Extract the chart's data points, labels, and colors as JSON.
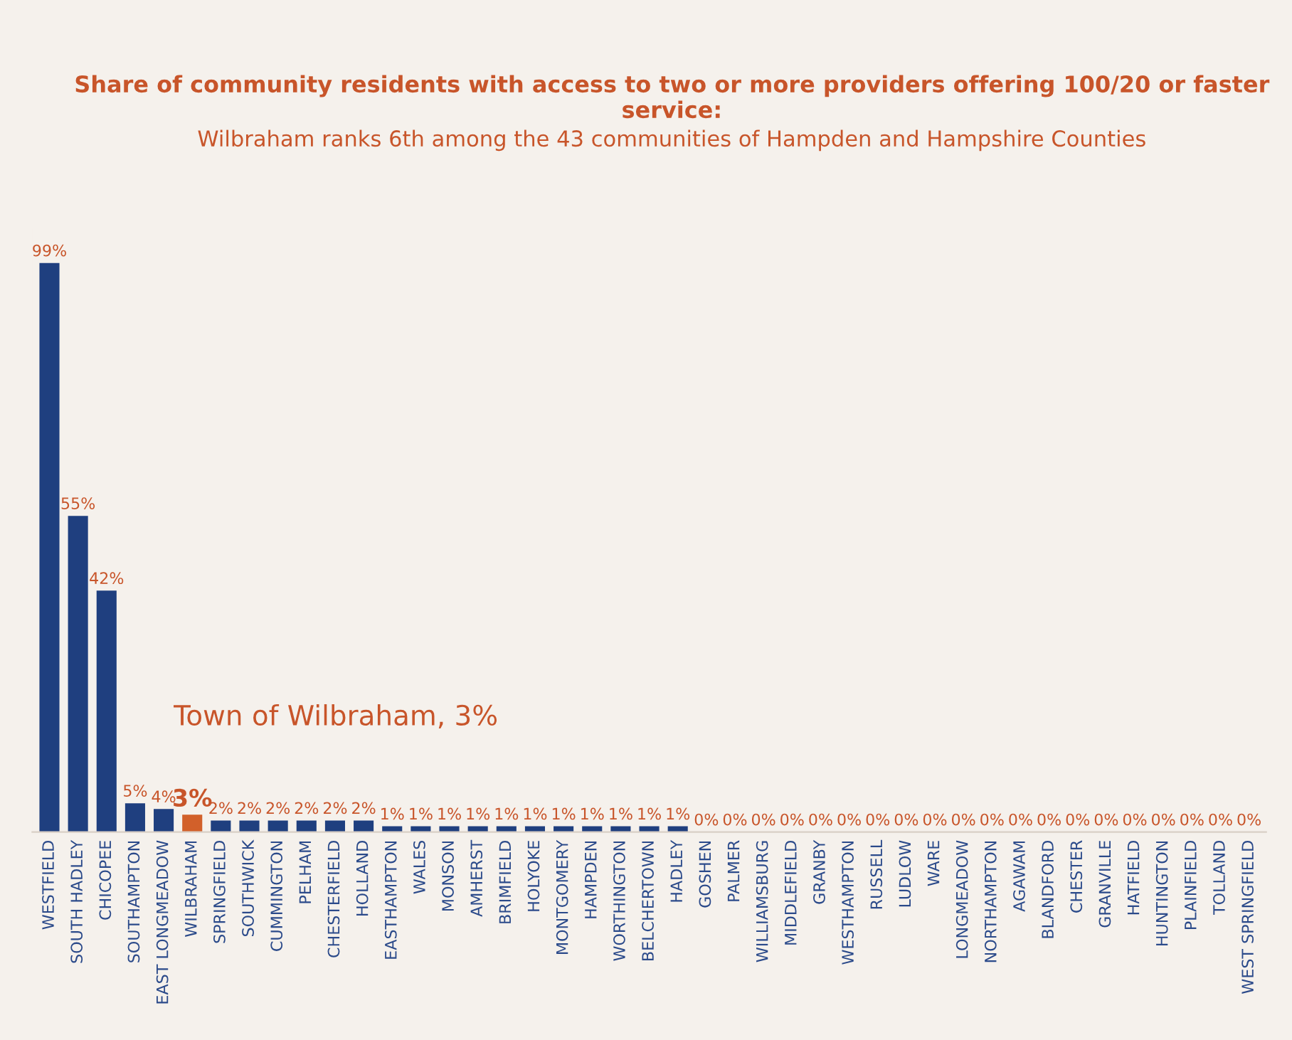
{
  "chart_data": {
    "type": "bar",
    "title": "Share of community residents with access to two or more providers offering 100/20 or faster service:",
    "subtitle": "Wilbraham ranks 6th among the 43 communities of Hampden and Hampshire Counties",
    "categories": [
      "WESTFIELD",
      "SOUTH HADLEY",
      "CHICOPEE",
      "SOUTHAMPTON",
      "EAST LONGMEADOW",
      "WILBRAHAM",
      "SPRINGFIELD",
      "SOUTHWICK",
      "CUMMINGTON",
      "PELHAM",
      "CHESTERFIELD",
      "HOLLAND",
      "EASTHAMPTON",
      "WALES",
      "MONSON",
      "AMHERST",
      "BRIMFIELD",
      "HOLYOKE",
      "MONTGOMERY",
      "HAMPDEN",
      "WORTHINGTON",
      "BELCHERTOWN",
      "HADLEY",
      "GOSHEN",
      "PALMER",
      "WILLIAMSBURG",
      "MIDDLEFIELD",
      "GRANBY",
      "WESTHAMPTON",
      "RUSSELL",
      "LUDLOW",
      "WARE",
      "LONGMEADOW",
      "NORTHAMPTON",
      "AGAWAM",
      "BLANDFORD",
      "CHESTER",
      "GRANVILLE",
      "HATFIELD",
      "HUNTINGTON",
      "PLAINFIELD",
      "TOLLAND",
      "WEST SPRINGFIELD"
    ],
    "values": [
      99,
      55,
      42,
      5,
      4,
      3,
      2,
      2,
      2,
      2,
      2,
      2,
      1,
      1,
      1,
      1,
      1,
      1,
      1,
      1,
      1,
      1,
      1,
      0,
      0,
      0,
      0,
      0,
      0,
      0,
      0,
      0,
      0,
      0,
      0,
      0,
      0,
      0,
      0,
      0,
      0,
      0,
      0
    ],
    "value_labels": [
      "99%",
      "55%",
      "42%",
      "5%",
      "4%",
      "3%",
      "2%",
      "2%",
      "2%",
      "2%",
      "2%",
      "2%",
      "1%",
      "1%",
      "1%",
      "1%",
      "1%",
      "1%",
      "1%",
      "1%",
      "1%",
      "1%",
      "1%",
      "0%",
      "0%",
      "0%",
      "0%",
      "0%",
      "0%",
      "0%",
      "0%",
      "0%",
      "0%",
      "0%",
      "0%",
      "0%",
      "0%",
      "0%",
      "0%",
      "0%",
      "0%",
      "0%",
      "0%"
    ],
    "colors": [
      "#1f3f7f",
      "#1f3f7f",
      "#1f3f7f",
      "#1f3f7f",
      "#1f3f7f",
      "#d2602a",
      "#1f3f7f",
      "#1f3f7f",
      "#1f3f7f",
      "#1f3f7f",
      "#1f3f7f",
      "#1f3f7f",
      "#1f3f7f",
      "#1f3f7f",
      "#1f3f7f",
      "#1f3f7f",
      "#1f3f7f",
      "#1f3f7f",
      "#1f3f7f",
      "#1f3f7f",
      "#1f3f7f",
      "#1f3f7f",
      "#1f3f7f",
      "#1f3f7f",
      "#1f3f7f",
      "#1f3f7f",
      "#1f3f7f",
      "#1f3f7f",
      "#1f3f7f",
      "#1f3f7f",
      "#1f3f7f",
      "#1f3f7f",
      "#1f3f7f",
      "#1f3f7f",
      "#1f3f7f",
      "#1f3f7f",
      "#1f3f7f",
      "#1f3f7f",
      "#1f3f7f",
      "#1f3f7f",
      "#1f3f7f",
      "#1f3f7f",
      "#1f3f7f"
    ],
    "annotations": [
      "Town of Wilbraham, 3%"
    ]
  }
}
